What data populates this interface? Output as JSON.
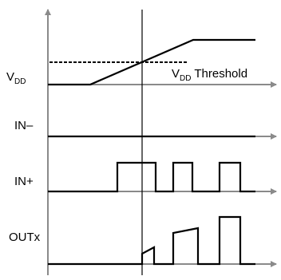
{
  "signals": {
    "vdd": {
      "label_main": "V",
      "label_sub": "DD"
    },
    "threshold": {
      "label_main": "V",
      "label_sub": "DD",
      "label_suffix": " Threshold"
    },
    "in_minus": {
      "label": "IN–"
    },
    "in_plus": {
      "label": "IN+"
    },
    "outx": {
      "label": "OUTx"
    }
  },
  "colors": {
    "axis": "#8a8a8a",
    "trace": "#000000",
    "background": "#ffffff"
  }
}
